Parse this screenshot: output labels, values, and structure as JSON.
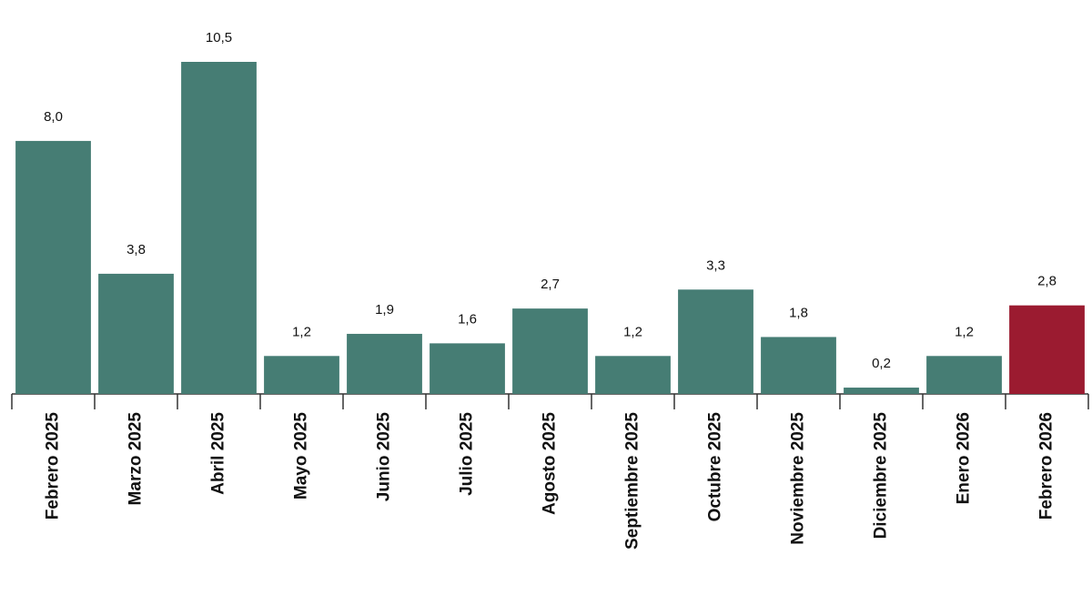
{
  "chart_data": {
    "type": "bar",
    "categories": [
      "Febrero 2025",
      "Marzo 2025",
      "Abril 2025",
      "Mayo 2025",
      "Junio 2025",
      "Julio 2025",
      "Agosto 2025",
      "Septiembre 2025",
      "Octubre 2025",
      "Noviembre 2025",
      "Diciembre 2025",
      "Enero 2026",
      "Febrero 2026"
    ],
    "values": [
      8.0,
      3.8,
      10.5,
      1.2,
      1.9,
      1.6,
      2.7,
      1.2,
      3.3,
      1.8,
      0.2,
      1.2,
      2.8
    ],
    "value_labels": [
      "8,0",
      "3,8",
      "10,5",
      "1,2",
      "1,9",
      "1,6",
      "2,7",
      "1,2",
      "3,3",
      "1,8",
      "0,2",
      "1,2",
      "2,8"
    ],
    "colors": [
      "#467d74",
      "#467d74",
      "#467d74",
      "#467d74",
      "#467d74",
      "#467d74",
      "#467d74",
      "#467d74",
      "#467d74",
      "#467d74",
      "#467d74",
      "#467d74",
      "#9b1b30"
    ]
  }
}
